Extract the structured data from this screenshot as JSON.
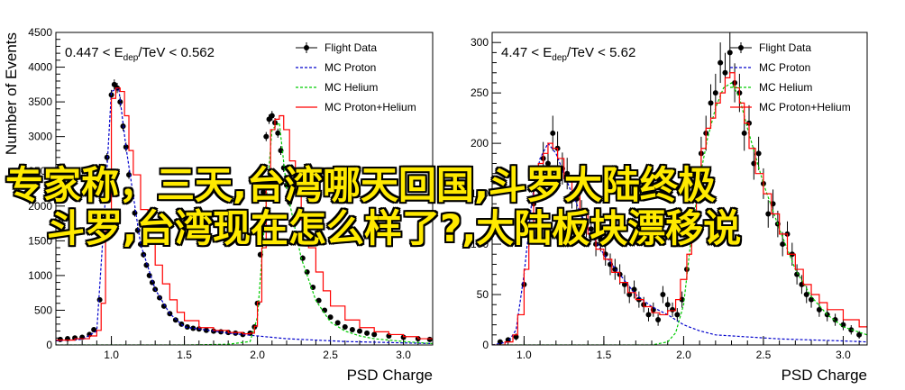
{
  "overlay_text": {
    "line1": "专家称，三天,台湾哪天回国,斗罗大陆终极",
    "line2": "斗罗,台湾现在怎么样了?,大陆板块漂移说"
  },
  "colors": {
    "flight": "#000000",
    "proton": "#0000cc",
    "helium": "#00cc00",
    "sum": "#ff0000",
    "overlay": "#ffea00"
  },
  "chart_data": [
    {
      "type": "line",
      "title": "0.447 < E_dep/TeV < 0.562",
      "title_parts": {
        "pre": "0.447 < E",
        "sub": "dep",
        "post": "/TeV < 0.562"
      },
      "xlabel": "PSD Charge",
      "ylabel": "Number of Events",
      "xlim": [
        0.62,
        3.2
      ],
      "ylim": [
        0,
        4500
      ],
      "xticks": [
        1.0,
        1.5,
        2.0,
        2.5,
        3.0
      ],
      "xticklabels": [
        "1.0",
        "1.5",
        "2.0",
        "2.5",
        "3.0"
      ],
      "yticks": [
        0,
        500,
        1000,
        1500,
        2000,
        2500,
        3000,
        3500,
        4000,
        4500
      ],
      "legend_position": "top-right",
      "legend": [
        "Flight Data",
        "MC Proton",
        "MC Helium",
        "MC Proton+Helium"
      ],
      "series": [
        {
          "name": "Flight Data",
          "style": "points",
          "x": [
            0.65,
            0.7,
            0.75,
            0.8,
            0.85,
            0.88,
            0.92,
            0.95,
            0.97,
            1.0,
            1.02,
            1.04,
            1.06,
            1.08,
            1.1,
            1.12,
            1.14,
            1.16,
            1.18,
            1.2,
            1.22,
            1.24,
            1.26,
            1.28,
            1.3,
            1.33,
            1.36,
            1.4,
            1.44,
            1.48,
            1.52,
            1.56,
            1.6,
            1.65,
            1.7,
            1.75,
            1.8,
            1.85,
            1.9,
            1.95,
            1.98,
            2.0,
            2.02,
            2.04,
            2.06,
            2.08,
            2.1,
            2.12,
            2.14,
            2.16,
            2.18,
            2.2,
            2.22,
            2.25,
            2.28,
            2.31,
            2.34,
            2.38,
            2.42,
            2.46,
            2.5,
            2.55,
            2.6,
            2.65,
            2.7,
            2.75,
            2.8,
            2.9,
            3.0,
            3.1,
            3.18
          ],
          "y": [
            80,
            90,
            100,
            110,
            150,
            220,
            650,
            1800,
            2700,
            3600,
            3750,
            3700,
            3500,
            3150,
            2850,
            2450,
            2150,
            1900,
            1650,
            1450,
            1300,
            1150,
            1000,
            900,
            800,
            680,
            560,
            450,
            360,
            300,
            260,
            240,
            230,
            210,
            200,
            190,
            180,
            170,
            150,
            170,
            260,
            600,
            1300,
            2200,
            3000,
            3250,
            3300,
            3200,
            3050,
            2800,
            2550,
            2300,
            2050,
            1800,
            1500,
            1250,
            1050,
            830,
            640,
            500,
            400,
            320,
            260,
            220,
            200,
            170,
            150,
            130,
            110,
            90,
            80
          ]
        },
        {
          "name": "MC Proton",
          "style": "dashed",
          "x": [
            0.62,
            0.8,
            0.9,
            0.95,
            1.0,
            1.05,
            1.1,
            1.2,
            1.3,
            1.4,
            1.5,
            1.6,
            1.7,
            1.8,
            1.9,
            2.0,
            2.1,
            2.2,
            2.4,
            2.6,
            2.8,
            3.0,
            3.2
          ],
          "y": [
            60,
            80,
            200,
            1800,
            3650,
            3700,
            2850,
            1450,
            800,
            450,
            260,
            230,
            200,
            170,
            150,
            130,
            110,
            90,
            70,
            50,
            40,
            30,
            20
          ]
        },
        {
          "name": "MC Helium",
          "style": "dashed",
          "x": [
            0.62,
            1.0,
            1.5,
            1.8,
            1.95,
            2.0,
            2.05,
            2.1,
            2.15,
            2.2,
            2.3,
            2.4,
            2.5,
            2.6,
            2.7,
            2.8,
            3.0,
            3.2
          ],
          "y": [
            0,
            0,
            0,
            10,
            50,
            400,
            1800,
            3100,
            3200,
            2250,
            1250,
            640,
            330,
            200,
            130,
            90,
            50,
            20
          ]
        },
        {
          "name": "MC Proton+Helium",
          "style": "step",
          "x": [
            0.62,
            0.75,
            0.85,
            0.9,
            0.93,
            0.96,
            1.0,
            1.03,
            1.06,
            1.09,
            1.12,
            1.15,
            1.2,
            1.25,
            1.3,
            1.35,
            1.4,
            1.45,
            1.5,
            1.6,
            1.7,
            1.8,
            1.9,
            1.95,
            1.98,
            2.0,
            2.03,
            2.06,
            2.09,
            2.12,
            2.15,
            2.18,
            2.22,
            2.26,
            2.3,
            2.35,
            2.4,
            2.45,
            2.5,
            2.6,
            2.7,
            2.8,
            2.9,
            3.0,
            3.1,
            3.2
          ],
          "y": [
            70,
            90,
            130,
            210,
            600,
            1750,
            3550,
            3700,
            3650,
            3300,
            2800,
            2450,
            1950,
            1500,
            1150,
            880,
            650,
            470,
            350,
            250,
            210,
            180,
            160,
            170,
            270,
            620,
            1400,
            2400,
            3100,
            3250,
            3300,
            3100,
            2650,
            2200,
            1800,
            1400,
            1050,
            780,
            560,
            360,
            250,
            190,
            150,
            120,
            90,
            80
          ]
        }
      ]
    },
    {
      "type": "line",
      "title": "4.47 < E_dep/TeV < 5.62",
      "title_parts": {
        "pre": "4.47 < E",
        "sub": "dep",
        "post": "/TeV < 5.62"
      },
      "xlabel": "PSD Charge",
      "ylabel": "",
      "xlim": [
        0.8,
        3.15
      ],
      "ylim": [
        0,
        310
      ],
      "xticks": [
        1.0,
        1.5,
        2.0,
        2.5,
        3.0
      ],
      "xticklabels": [
        "1.0",
        "1.5",
        "2.0",
        "2.5",
        "3.0"
      ],
      "yticks": [
        0,
        50,
        100,
        150,
        200,
        250,
        300
      ],
      "legend_position": "top-right",
      "legend": [
        "Flight Data",
        "MC Proton",
        "MC Helium",
        "MC Proton+Helium"
      ],
      "series": [
        {
          "name": "Flight Data",
          "style": "points",
          "x": [
            0.85,
            0.9,
            0.95,
            1.0,
            1.03,
            1.06,
            1.09,
            1.12,
            1.15,
            1.18,
            1.21,
            1.24,
            1.27,
            1.3,
            1.33,
            1.36,
            1.39,
            1.42,
            1.45,
            1.48,
            1.51,
            1.54,
            1.57,
            1.6,
            1.63,
            1.66,
            1.69,
            1.72,
            1.75,
            1.78,
            1.81,
            1.84,
            1.87,
            1.9,
            1.93,
            1.96,
            1.99,
            2.02,
            2.05,
            2.08,
            2.11,
            2.14,
            2.17,
            2.2,
            2.23,
            2.26,
            2.29,
            2.32,
            2.35,
            2.38,
            2.41,
            2.44,
            2.47,
            2.5,
            2.53,
            2.56,
            2.59,
            2.62,
            2.65,
            2.68,
            2.71,
            2.74,
            2.77,
            2.8,
            2.85,
            2.9,
            2.95,
            3.0,
            3.05,
            3.1
          ],
          "y": [
            3,
            5,
            8,
            60,
            110,
            140,
            165,
            185,
            180,
            210,
            195,
            175,
            170,
            150,
            145,
            130,
            120,
            115,
            100,
            105,
            90,
            80,
            75,
            70,
            60,
            50,
            55,
            45,
            40,
            30,
            35,
            25,
            50,
            40,
            35,
            30,
            45,
            75,
            110,
            155,
            190,
            210,
            240,
            250,
            280,
            270,
            290,
            260,
            250,
            210,
            220,
            180,
            190,
            160,
            130,
            140,
            120,
            100,
            110,
            90,
            70,
            60,
            50,
            45,
            35,
            30,
            25,
            20,
            15,
            10
          ]
        },
        {
          "name": "MC Proton",
          "style": "dashed",
          "x": [
            0.8,
            0.9,
            0.95,
            1.0,
            1.05,
            1.1,
            1.15,
            1.2,
            1.3,
            1.4,
            1.5,
            1.6,
            1.7,
            1.8,
            1.9,
            2.0,
            2.1,
            2.2,
            2.4,
            2.6,
            2.8,
            3.0,
            3.15
          ],
          "y": [
            0,
            3,
            15,
            70,
            145,
            185,
            200,
            190,
            150,
            115,
            90,
            70,
            50,
            38,
            30,
            20,
            14,
            10,
            8,
            6,
            5,
            4,
            3
          ]
        },
        {
          "name": "MC Helium",
          "style": "dashed",
          "x": [
            0.8,
            1.8,
            1.9,
            1.95,
            2.0,
            2.05,
            2.1,
            2.15,
            2.2,
            2.25,
            2.3,
            2.35,
            2.4,
            2.5,
            2.6,
            2.7,
            2.8,
            2.9,
            3.0,
            3.15
          ],
          "y": [
            0,
            0,
            3,
            12,
            40,
            110,
            165,
            205,
            235,
            255,
            260,
            245,
            215,
            160,
            115,
            75,
            48,
            30,
            18,
            10
          ]
        },
        {
          "name": "MC Proton+Helium",
          "style": "step",
          "x": [
            0.8,
            0.88,
            0.93,
            0.96,
            1.0,
            1.03,
            1.06,
            1.09,
            1.12,
            1.15,
            1.18,
            1.21,
            1.25,
            1.3,
            1.35,
            1.4,
            1.45,
            1.5,
            1.55,
            1.6,
            1.65,
            1.7,
            1.75,
            1.8,
            1.85,
            1.9,
            1.95,
            1.98,
            2.02,
            2.05,
            2.08,
            2.11,
            2.14,
            2.17,
            2.2,
            2.23,
            2.26,
            2.29,
            2.32,
            2.35,
            2.38,
            2.41,
            2.45,
            2.5,
            2.55,
            2.6,
            2.65,
            2.7,
            2.75,
            2.8,
            2.85,
            2.9,
            3.0,
            3.1
          ],
          "y": [
            0,
            3,
            10,
            30,
            75,
            120,
            155,
            180,
            190,
            200,
            195,
            185,
            165,
            150,
            130,
            110,
            95,
            85,
            72,
            62,
            52,
            45,
            38,
            32,
            30,
            34,
            45,
            65,
            90,
            125,
            160,
            195,
            215,
            225,
            240,
            250,
            265,
            270,
            255,
            240,
            220,
            195,
            170,
            150,
            130,
            110,
            90,
            75,
            60,
            50,
            42,
            35,
            25,
            18
          ]
        }
      ]
    }
  ]
}
